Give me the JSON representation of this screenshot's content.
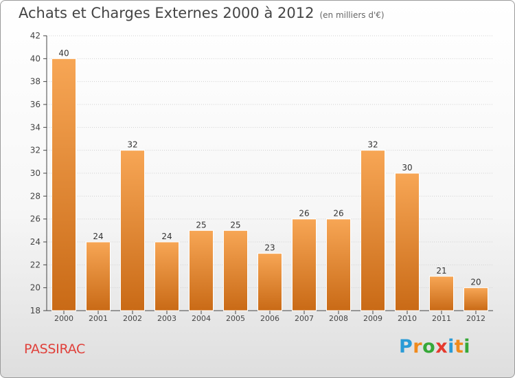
{
  "title": "Achats et Charges Externes 2000 à 2012",
  "unit": "(en milliers d'€)",
  "town": "PASSIRAC",
  "logo": {
    "letters": [
      "P",
      "r",
      "o",
      "x",
      "i",
      "t",
      "i"
    ],
    "colors": [
      "#2a9bd6",
      "#f08a1c",
      "#36a838",
      "#e53a2e",
      "#2a9bd6",
      "#f08a1c",
      "#36a838"
    ]
  },
  "colors": {
    "bar_top": "#f7a655",
    "bar_bottom": "#c96a16",
    "label": "#333333",
    "axis": "#444444",
    "grid": "#d0d0d0"
  },
  "chart_data": {
    "type": "bar",
    "categories": [
      "2000",
      "2001",
      "2002",
      "2003",
      "2004",
      "2005",
      "2006",
      "2007",
      "2008",
      "2009",
      "2010",
      "2011",
      "2012"
    ],
    "values": [
      40,
      24,
      32,
      24,
      25,
      25,
      23,
      26,
      26,
      32,
      30,
      21,
      20
    ],
    "ylim": [
      18,
      42
    ],
    "yticks": [
      18,
      20,
      22,
      24,
      26,
      28,
      30,
      32,
      34,
      36,
      38,
      40,
      42
    ],
    "grid": true
  }
}
